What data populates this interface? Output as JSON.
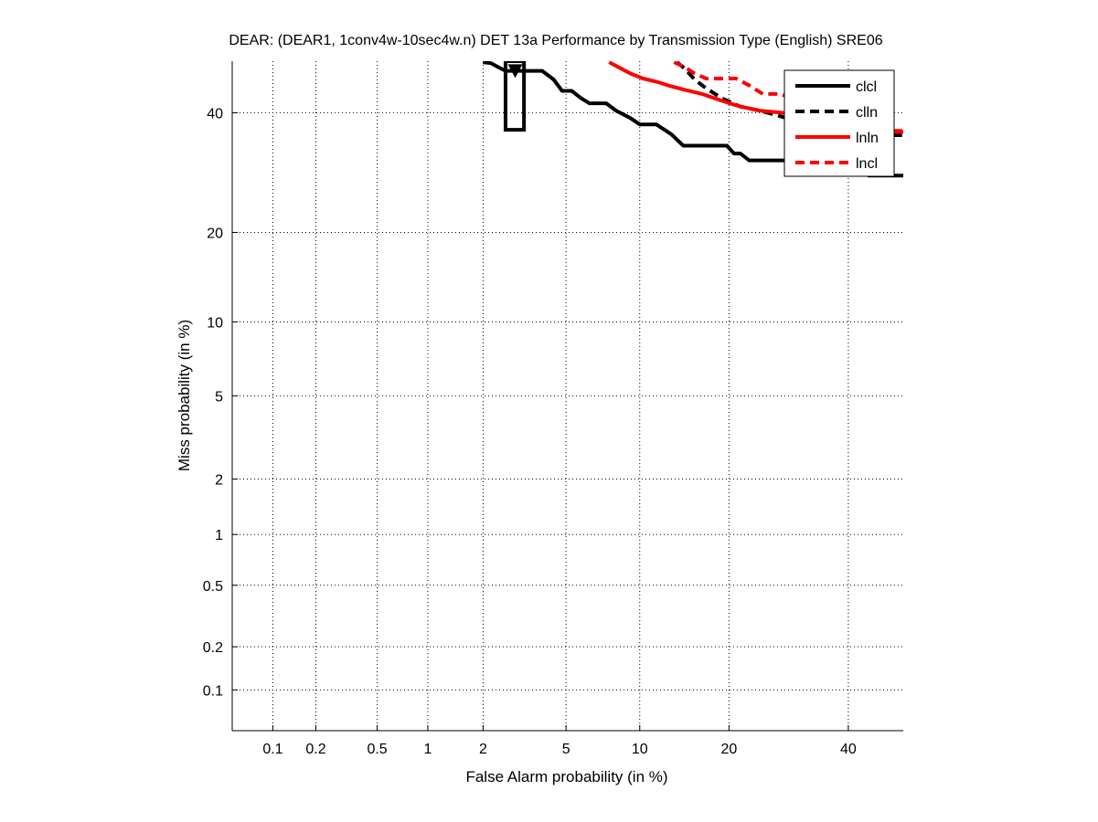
{
  "chart_data": {
    "type": "line",
    "scale": "normal-deviate",
    "title": "DEAR: (DEAR1, 1conv4w-10sec4w.n) DET 13a Performance by Transmission Type (English) SRE06",
    "xlabel": "False Alarm probability (in %)",
    "ylabel": "Miss probability (in %)",
    "xlim": [
      0.05,
      50.7
    ],
    "ylim": [
      0.05,
      50
    ],
    "grid": true,
    "x_ticks": [
      0.1,
      0.2,
      0.5,
      1,
      2,
      5,
      10,
      20,
      40
    ],
    "x_tick_labels": [
      "0.1",
      "0.2",
      "0.5",
      "1",
      "2",
      "5",
      "10",
      "20",
      "40"
    ],
    "y_ticks": [
      0.1,
      0.2,
      0.5,
      1,
      2,
      5,
      10,
      20,
      40
    ],
    "y_tick_labels": [
      "0.1",
      "0.2",
      "0.5",
      "1",
      "2",
      "5",
      "10",
      "20",
      "40"
    ],
    "legend_position": "top-right",
    "series": [
      {
        "name": "clcl",
        "color": "#000000",
        "dashed": false,
        "points": [
          [
            2.0,
            49.8
          ],
          [
            2.2,
            49.6
          ],
          [
            2.4,
            48.8
          ],
          [
            2.6,
            48.1
          ],
          [
            3.0,
            48.1
          ],
          [
            3.9,
            48.1
          ],
          [
            4.1,
            47.4
          ],
          [
            4.4,
            46.4
          ],
          [
            4.8,
            44.2
          ],
          [
            5.3,
            44.2
          ],
          [
            5.8,
            42.8
          ],
          [
            6.3,
            41.8
          ],
          [
            7.4,
            41.8
          ],
          [
            8.1,
            40.4
          ],
          [
            9.2,
            39.0
          ],
          [
            10.0,
            37.8
          ],
          [
            11.5,
            37.8
          ],
          [
            13.0,
            36.0
          ],
          [
            14.3,
            33.9
          ],
          [
            19.7,
            33.9
          ],
          [
            20.7,
            32.5
          ],
          [
            21.6,
            32.5
          ],
          [
            22.9,
            31.3
          ],
          [
            28.5,
            31.3
          ],
          [
            30.5,
            31.0
          ],
          [
            40.5,
            30.6
          ],
          [
            43.9,
            28.7
          ],
          [
            50.7,
            28.7
          ]
        ]
      },
      {
        "name": "clln",
        "color": "#000000",
        "dashed": true,
        "points": [
          [
            13.6,
            49.8
          ],
          [
            14.5,
            48.5
          ],
          [
            15.6,
            46.4
          ],
          [
            17.0,
            44.7
          ],
          [
            19.0,
            42.8
          ],
          [
            21.5,
            41.2
          ],
          [
            24.5,
            40.4
          ],
          [
            27.0,
            39.6
          ],
          [
            30.0,
            38.6
          ],
          [
            34.0,
            37.4
          ],
          [
            40.0,
            36.6
          ],
          [
            46.0,
            35.8
          ],
          [
            50.7,
            35.8
          ]
        ]
      },
      {
        "name": "lnln",
        "color": "#ff0000",
        "dashed": false,
        "points": [
          [
            7.6,
            49.8
          ],
          [
            8.3,
            48.8
          ],
          [
            9.2,
            47.6
          ],
          [
            10.3,
            46.6
          ],
          [
            11.5,
            46.0
          ],
          [
            12.8,
            45.2
          ],
          [
            14.5,
            44.4
          ],
          [
            16.5,
            43.6
          ],
          [
            18.8,
            42.4
          ],
          [
            21.5,
            41.2
          ],
          [
            24.5,
            40.4
          ],
          [
            28.0,
            40.0
          ],
          [
            31.5,
            39.4
          ],
          [
            36.0,
            38.6
          ],
          [
            41.0,
            37.4
          ],
          [
            46.0,
            36.4
          ],
          [
            50.7,
            36.4
          ]
        ]
      },
      {
        "name": "lncl",
        "color": "#ff0000",
        "dashed": true,
        "points": [
          [
            13.3,
            49.8
          ],
          [
            14.5,
            48.8
          ],
          [
            15.6,
            47.6
          ],
          [
            17.0,
            46.6
          ],
          [
            19.0,
            46.6
          ],
          [
            21.0,
            46.6
          ],
          [
            23.0,
            45.2
          ],
          [
            25.0,
            43.6
          ],
          [
            28.0,
            43.6
          ],
          [
            30.0,
            42.4
          ],
          [
            34.0,
            40.4
          ],
          [
            38.5,
            38.6
          ],
          [
            44.0,
            37.4
          ],
          [
            48.0,
            36.6
          ],
          [
            50.7,
            36.6
          ]
        ]
      }
    ],
    "annotations": [
      {
        "type": "decision-box",
        "name": "min-dcf-box",
        "color": "#000000",
        "fa_range": [
          2.6,
          3.2
        ],
        "miss_range": [
          36.8,
          50
        ]
      },
      {
        "type": "marker",
        "name": "actual-dcf-marker",
        "shape": "triangle-down",
        "color": "#000000",
        "fa": 2.9,
        "miss": 47.6
      }
    ]
  }
}
